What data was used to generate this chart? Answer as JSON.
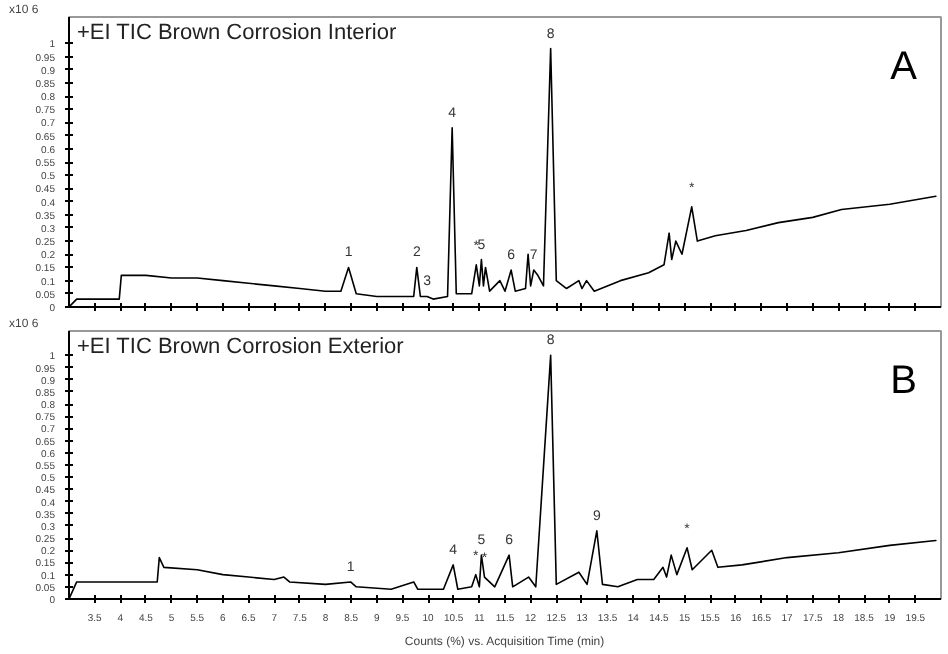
{
  "chart_data": [
    {
      "type": "line",
      "title": "+EI TIC Brown Corrosion Interior",
      "ylabel": "x10 6",
      "tick_labels": "y",
      "grid": false,
      "xlim": [
        3,
        20
      ],
      "ylim": [
        0,
        1.1
      ],
      "yticks": [
        0,
        0.05,
        0.1,
        0.15,
        0.2,
        0.25,
        0.3,
        0.35,
        0.4,
        0.45,
        0.5,
        0.55,
        0.6,
        0.65,
        0.7,
        0.75,
        0.8,
        0.85,
        0.9,
        0.95,
        1
      ],
      "xticks": [
        3.5,
        4,
        4.5,
        5,
        5.5,
        6,
        6.5,
        7,
        7.5,
        8,
        8.5,
        9,
        9.5,
        10,
        10.5,
        11,
        11.5,
        12,
        12.5,
        13,
        13.5,
        14,
        14.5,
        15,
        15.5,
        16,
        16.5,
        17,
        17.5,
        18,
        18.5,
        19,
        19.5
      ],
      "series": [
        {
          "color": "#000000",
          "x": [
            3.0,
            3.15,
            3.5,
            3.98,
            4.02,
            4.5,
            5.0,
            5.5,
            6.0,
            6.5,
            7.0,
            7.5,
            8.0,
            8.3,
            8.45,
            8.6,
            9.0,
            9.5,
            9.72,
            9.78,
            9.85,
            9.98,
            10.1,
            10.38,
            10.47,
            10.55,
            10.85,
            10.94,
            11.0,
            11.04,
            11.08,
            11.12,
            11.2,
            11.4,
            11.5,
            11.62,
            11.7,
            11.9,
            11.95,
            12.0,
            12.06,
            12.14,
            12.25,
            12.39,
            12.5,
            12.7,
            12.94,
            13.0,
            13.09,
            13.24,
            13.75,
            14.3,
            14.6,
            14.7,
            14.75,
            14.83,
            14.95,
            15.14,
            15.25,
            15.6,
            16.2,
            16.83,
            17.5,
            18.06,
            19.0,
            19.9
          ],
          "values": [
            0.0,
            0.03,
            0.03,
            0.03,
            0.12,
            0.12,
            0.11,
            0.11,
            0.1,
            0.09,
            0.08,
            0.07,
            0.06,
            0.06,
            0.15,
            0.05,
            0.04,
            0.04,
            0.04,
            0.15,
            0.04,
            0.04,
            0.03,
            0.04,
            0.68,
            0.05,
            0.05,
            0.16,
            0.08,
            0.18,
            0.08,
            0.15,
            0.06,
            0.1,
            0.06,
            0.14,
            0.06,
            0.07,
            0.2,
            0.08,
            0.14,
            0.12,
            0.08,
            0.98,
            0.1,
            0.07,
            0.1,
            0.07,
            0.1,
            0.06,
            0.1,
            0.13,
            0.16,
            0.28,
            0.18,
            0.25,
            0.2,
            0.38,
            0.25,
            0.27,
            0.29,
            0.32,
            0.34,
            0.37,
            0.39,
            0.42
          ]
        }
      ],
      "annotations": [
        {
          "text": "1",
          "x": 8.45,
          "y": 0.15
        },
        {
          "text": "2",
          "x": 9.78,
          "y": 0.15
        },
        {
          "text": "3",
          "x": 9.98,
          "y": 0.04
        },
        {
          "text": "4",
          "x": 10.47,
          "y": 0.68
        },
        {
          "text": "*",
          "x": 10.94,
          "y": 0.16
        },
        {
          "text": "5",
          "x": 11.04,
          "y": 0.18
        },
        {
          "text": "6",
          "x": 11.62,
          "y": 0.14
        },
        {
          "text": "7",
          "x": 12.06,
          "y": 0.14
        },
        {
          "text": "8",
          "x": 12.39,
          "y": 0.98
        },
        {
          "text": "*",
          "x": 15.14,
          "y": 0.38
        },
        "A"
      ]
    },
    {
      "type": "line",
      "title": "+EI TIC Brown Corrosion Exterior",
      "ylabel": "x10 6",
      "xlabel": "Counts (%) vs. Acquisition Time (min)",
      "grid": false,
      "xlim": [
        3,
        20
      ],
      "ylim": [
        0,
        1.1
      ],
      "yticks": [
        0,
        0.05,
        0.1,
        0.15,
        0.2,
        0.25,
        0.3,
        0.35,
        0.4,
        0.45,
        0.5,
        0.55,
        0.6,
        0.65,
        0.7,
        0.75,
        0.8,
        0.85,
        0.9,
        0.95,
        1
      ],
      "xticks": [
        3.5,
        4,
        4.5,
        5,
        5.5,
        6,
        6.5,
        7,
        7.5,
        8,
        8.5,
        9,
        9.5,
        10,
        10.5,
        11,
        11.5,
        12,
        12.5,
        13,
        13.5,
        14,
        14.5,
        15,
        15.5,
        16,
        16.5,
        17,
        17.5,
        18,
        18.5,
        19,
        19.5
      ],
      "series": [
        {
          "color": "#000000",
          "x": [
            3.0,
            3.15,
            3.5,
            4.0,
            4.72,
            4.76,
            4.85,
            5.5,
            6.0,
            6.5,
            7.0,
            7.19,
            7.3,
            8.0,
            8.49,
            8.6,
            9.28,
            9.72,
            9.8,
            10.3,
            10.49,
            10.58,
            10.85,
            10.93,
            11.0,
            11.04,
            11.1,
            11.3,
            11.58,
            11.65,
            11.96,
            12.1,
            12.39,
            12.5,
            12.94,
            13.1,
            13.29,
            13.4,
            13.7,
            14.08,
            14.4,
            14.58,
            14.65,
            14.74,
            14.85,
            15.05,
            15.15,
            15.53,
            15.65,
            16.12,
            17.0,
            18.0,
            19.0,
            19.9
          ],
          "values": [
            0.0,
            0.07,
            0.07,
            0.07,
            0.07,
            0.17,
            0.13,
            0.12,
            0.1,
            0.09,
            0.08,
            0.09,
            0.07,
            0.06,
            0.07,
            0.05,
            0.04,
            0.07,
            0.04,
            0.04,
            0.14,
            0.04,
            0.05,
            0.1,
            0.05,
            0.18,
            0.09,
            0.05,
            0.18,
            0.05,
            0.09,
            0.05,
            1.0,
            0.06,
            0.11,
            0.06,
            0.28,
            0.06,
            0.05,
            0.08,
            0.08,
            0.13,
            0.09,
            0.18,
            0.1,
            0.21,
            0.12,
            0.2,
            0.13,
            0.14,
            0.17,
            0.19,
            0.22,
            0.24
          ]
        }
      ],
      "annotations": [
        {
          "text": "1",
          "x": 8.49,
          "y": 0.07
        },
        {
          "text": "4",
          "x": 10.49,
          "y": 0.14
        },
        {
          "text": "*",
          "x": 10.93,
          "y": 0.1
        },
        {
          "text": "5",
          "x": 11.04,
          "y": 0.18
        },
        {
          "text": "*",
          "x": 11.1,
          "y": 0.09
        },
        {
          "text": "6",
          "x": 11.58,
          "y": 0.18
        },
        {
          "text": "8",
          "x": 12.39,
          "y": 1.0
        },
        {
          "text": "9",
          "x": 13.29,
          "y": 0.28
        },
        {
          "text": "*",
          "x": 15.05,
          "y": 0.21
        },
        "B"
      ]
    }
  ]
}
